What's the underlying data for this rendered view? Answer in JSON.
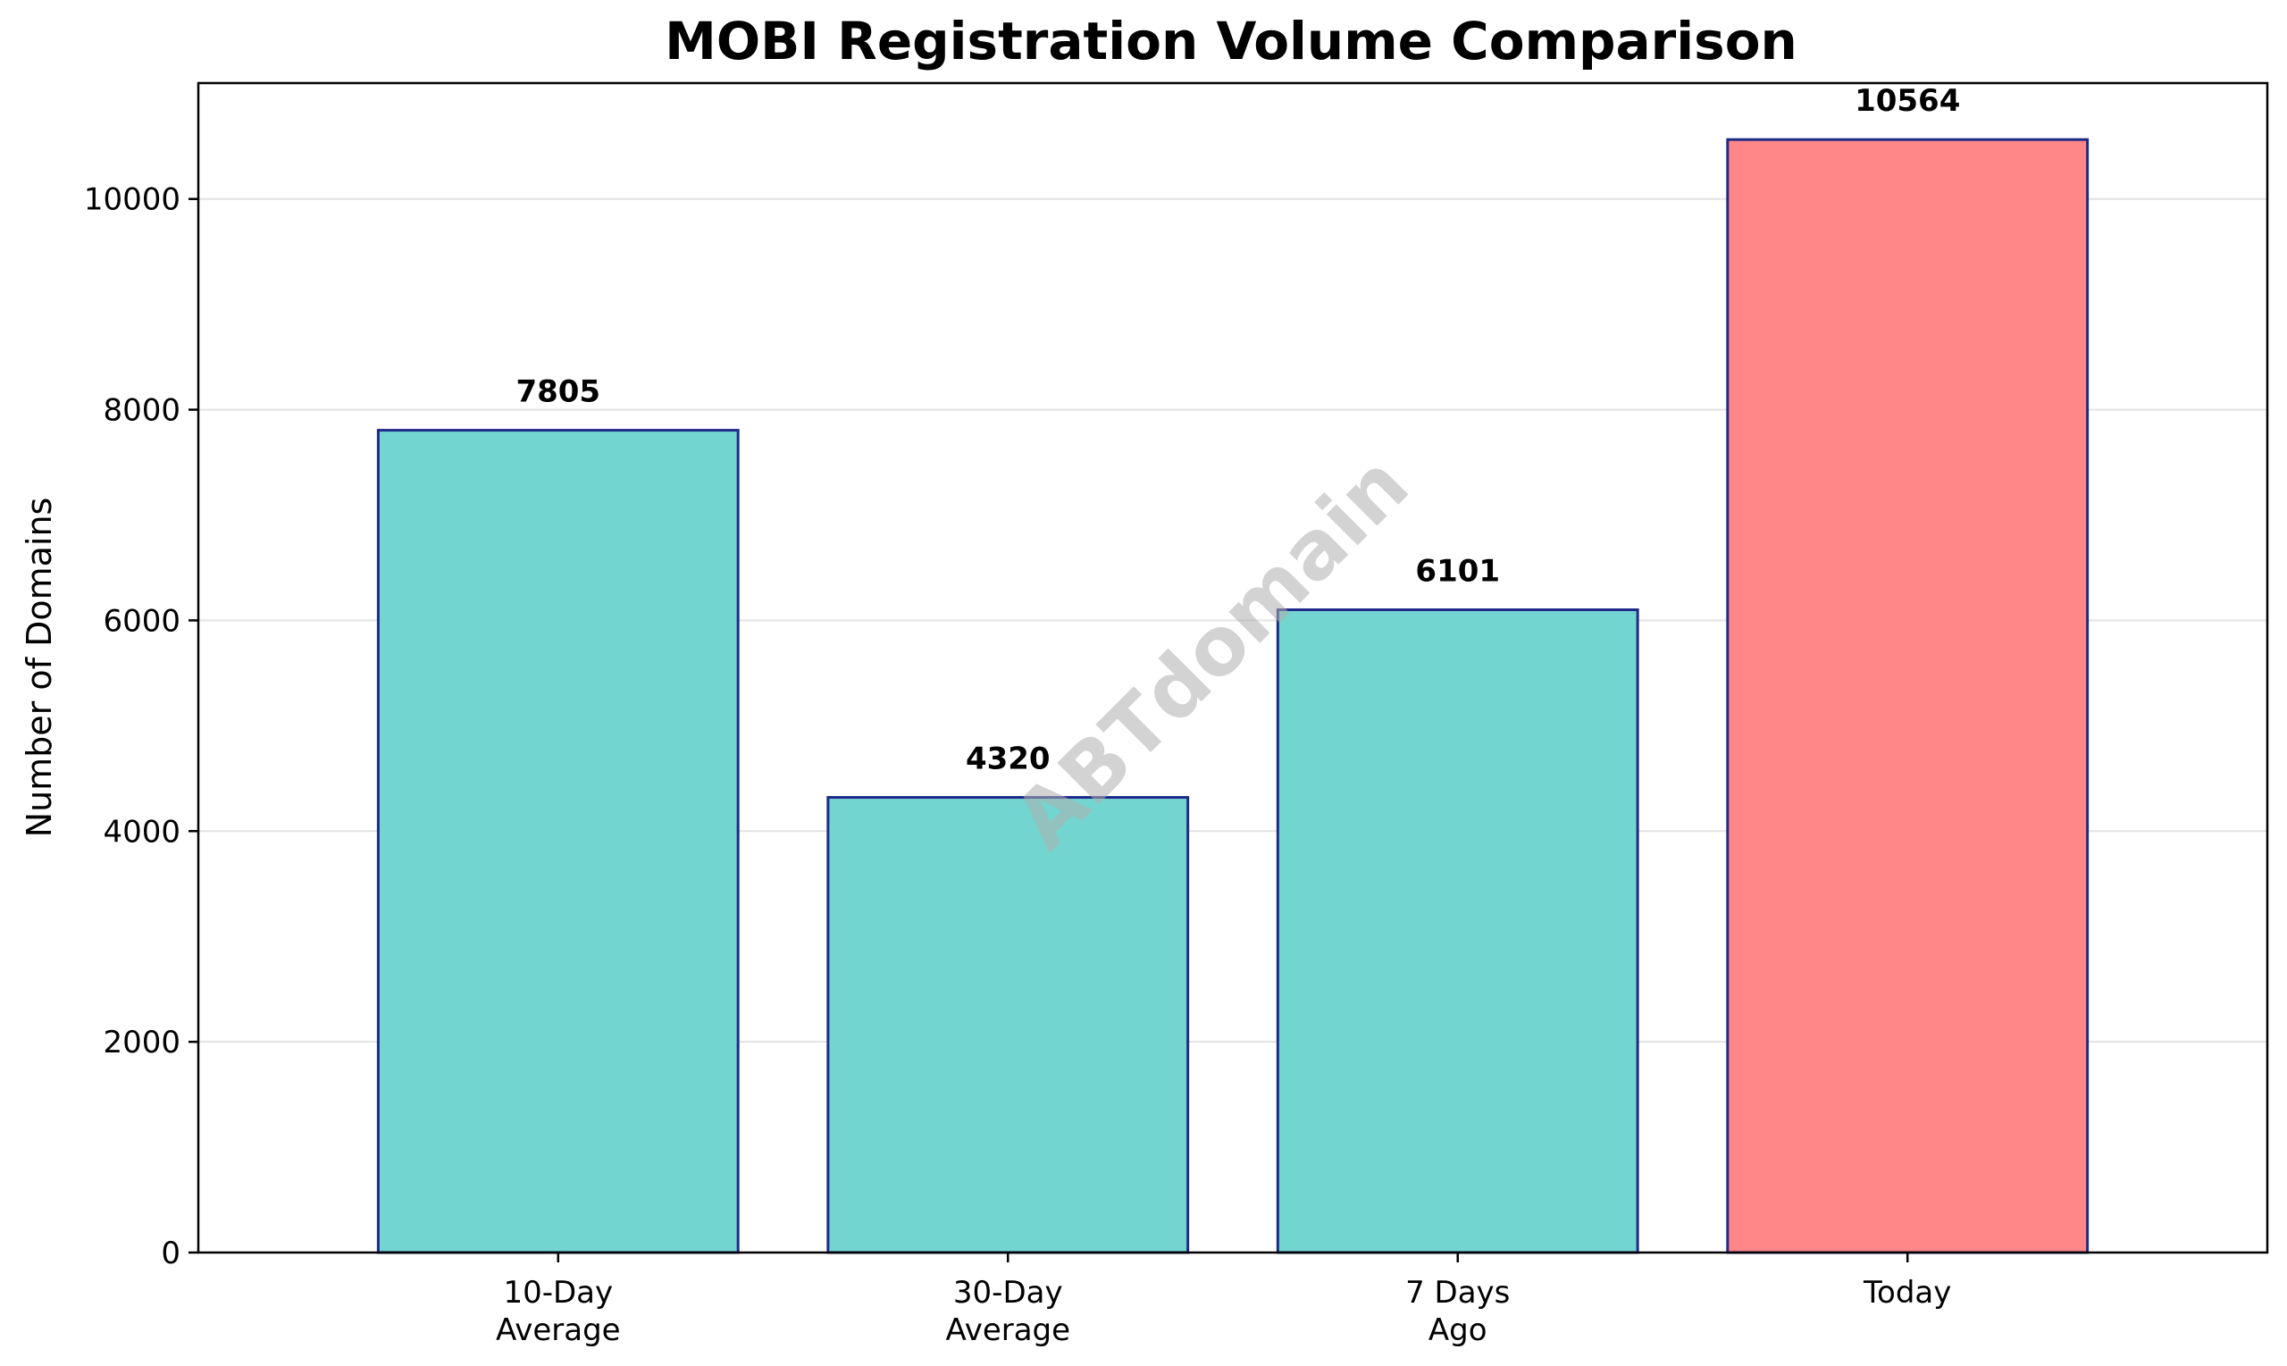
{
  "chart_data": {
    "type": "bar",
    "title": "MOBI Registration Volume Comparison",
    "xlabel": "",
    "ylabel": "Number of Domains",
    "categories": [
      [
        "10-Day",
        "Average"
      ],
      [
        "30-Day",
        "Average"
      ],
      [
        "7 Days",
        "Ago"
      ],
      [
        "Today"
      ]
    ],
    "values": [
      7805,
      4320,
      6101,
      10564
    ],
    "value_labels": [
      "7805",
      "4320",
      "6101",
      "10564"
    ],
    "bar_colors": [
      "#72d5cf",
      "#72d5cf",
      "#72d5cf",
      "#ff8787"
    ],
    "bar_edge_color": "#1e2a8a",
    "ylim": [
      0,
      11100
    ],
    "yticks": [
      0,
      2000,
      4000,
      6000,
      8000,
      10000
    ],
    "ytick_labels": [
      "0",
      "2000",
      "4000",
      "6000",
      "8000",
      "10000"
    ],
    "grid": "horizontal",
    "grid_color": "#e3e3e3",
    "watermark": "ABTdomain"
  }
}
